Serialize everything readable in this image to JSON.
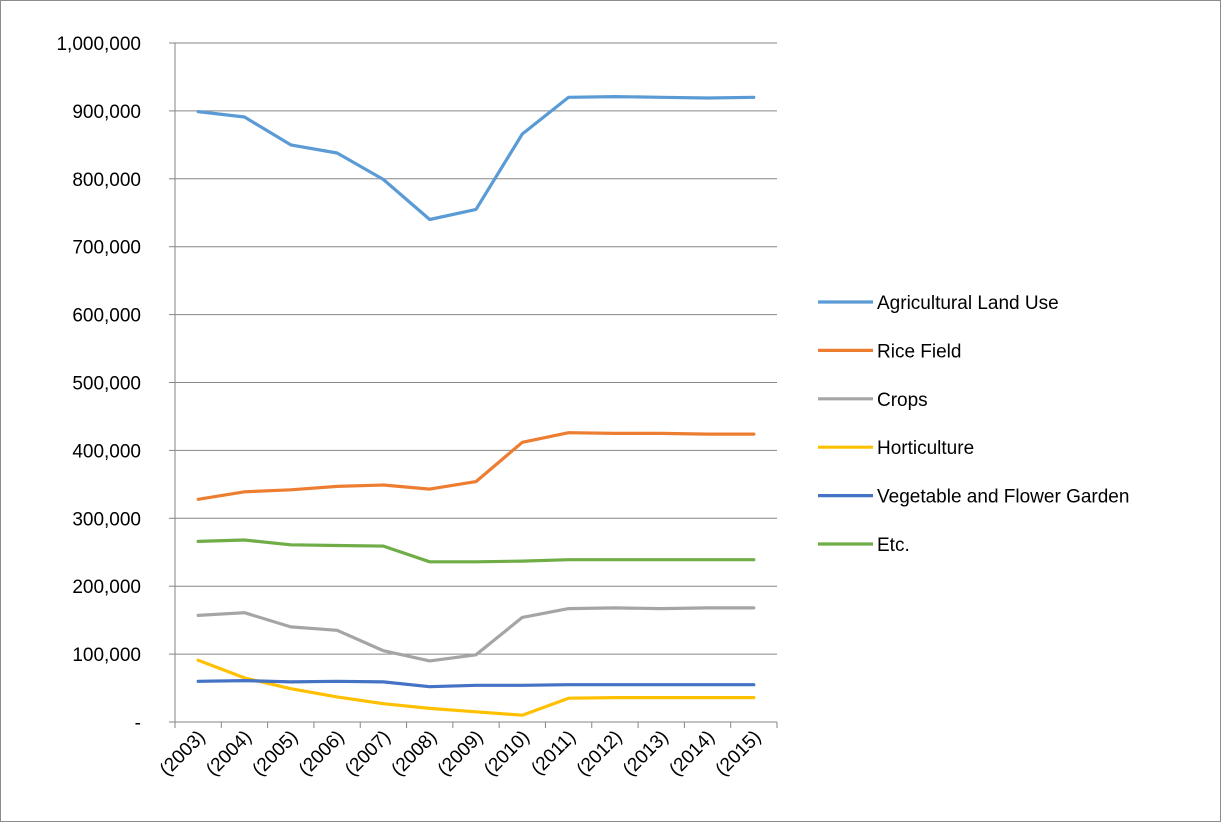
{
  "chart_data": {
    "type": "line",
    "title": "",
    "xlabel": "",
    "ylabel": "",
    "categories": [
      "(2003)",
      "(2004)",
      "(2005)",
      "(2006)",
      "(2007)",
      "(2008)",
      "(2009)",
      "(2010)",
      "(2011)",
      "(2012)",
      "(2013)",
      "(2014)",
      "(2015)"
    ],
    "ylim": [
      0,
      1000000
    ],
    "y_ticks": [
      0,
      100000,
      200000,
      300000,
      400000,
      500000,
      600000,
      700000,
      800000,
      900000,
      1000000
    ],
    "y_tick_labels": [
      "-",
      "100,000",
      "200,000",
      "300,000",
      "400,000",
      "500,000",
      "600,000",
      "700,000",
      "800,000",
      "900,000",
      "1,000,000"
    ],
    "grid": "horizontal",
    "legend_position": "right",
    "series": [
      {
        "name": "Agricultural Land Use",
        "color": "#5b9bd5",
        "values": [
          899000,
          891000,
          850000,
          838000,
          799000,
          740000,
          755000,
          866000,
          920000,
          921000,
          920000,
          919000,
          920000
        ]
      },
      {
        "name": "Rice Field",
        "color": "#ed7d31",
        "values": [
          328000,
          339000,
          342000,
          347000,
          349000,
          343000,
          354000,
          412000,
          426000,
          425000,
          425000,
          424000,
          424000
        ]
      },
      {
        "name": "Crops",
        "color": "#a5a5a5",
        "values": [
          157000,
          161000,
          140000,
          135000,
          105000,
          90000,
          99000,
          154000,
          167000,
          168000,
          167000,
          168000,
          168000
        ]
      },
      {
        "name": "Horticulture",
        "color": "#ffc000",
        "values": [
          91000,
          65000,
          49000,
          37000,
          27000,
          20000,
          15000,
          10000,
          35000,
          36000,
          36000,
          36000,
          36000
        ]
      },
      {
        "name": "Vegetable and Flower Garden",
        "color": "#4472c4",
        "values": [
          60000,
          61000,
          59000,
          60000,
          59000,
          52000,
          54000,
          54000,
          55000,
          55000,
          55000,
          55000,
          55000
        ]
      },
      {
        "name": "Etc.",
        "color": "#70ad47",
        "values": [
          266000,
          268000,
          261000,
          260000,
          259000,
          236000,
          236000,
          237000,
          239000,
          239000,
          239000,
          239000,
          239000
        ]
      }
    ]
  }
}
